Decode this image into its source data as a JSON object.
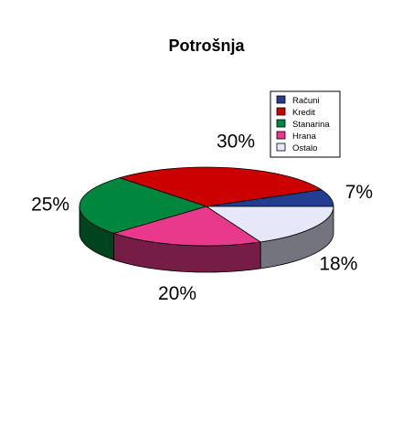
{
  "chart_data": {
    "type": "pie",
    "style": "3d-exploded-none",
    "title": "Potrošnja",
    "categories": [
      "Računi",
      "Kredit",
      "Stanarina",
      "Hrana",
      "Ostalo"
    ],
    "values": [
      7,
      30,
      25,
      20,
      18
    ],
    "labels": [
      "7%",
      "30%",
      "25%",
      "20%",
      "18%"
    ],
    "colors": [
      "#233E91",
      "#CC0000",
      "#00873E",
      "#E9398D",
      "#E6E8FA"
    ],
    "legend": {
      "position": "top-right",
      "entries": [
        "Računi",
        "Kredit",
        "Stanarina",
        "Hrana",
        "Ostalo"
      ]
    }
  }
}
